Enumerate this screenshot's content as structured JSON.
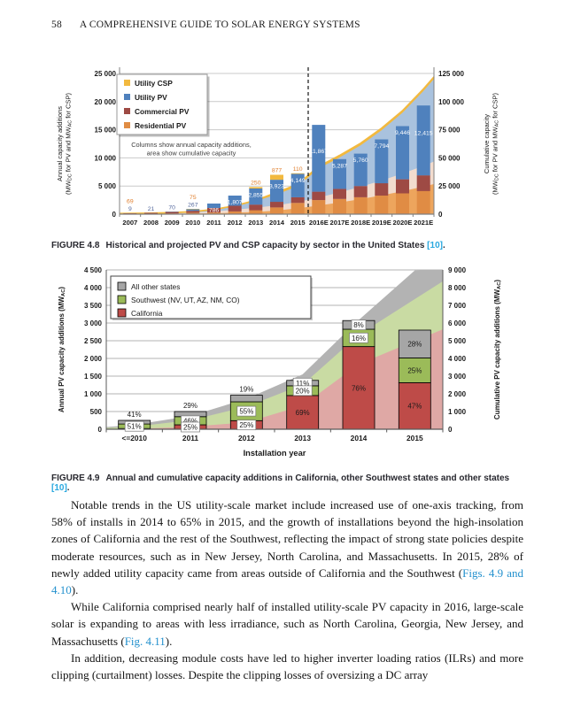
{
  "page": {
    "number": "58",
    "running_title": "A COMPREHENSIVE GUIDE TO SOLAR ENERGY SYSTEMS"
  },
  "figures": {
    "fig48_caption": {
      "label": "FIGURE 4.8",
      "text": "Historical and projected PV and CSP capacity by sector in the United States ",
      "ref": "[10]",
      "suffix": "."
    },
    "fig49_caption": {
      "label": "FIGURE 4.9",
      "text": "Annual and cumulative capacity additions in California, other Southwest states and other states ",
      "ref": "[10]",
      "suffix": "."
    }
  },
  "body": {
    "paragraphs": [
      {
        "segments": [
          {
            "t": "Notable trends in the US utility-scale market include increased use of one-axis tracking, from 58% of installs in 2014 to 65% in 2015, and the growth of installations beyond the high-insolation zones of California and the rest of the Southwest, reflecting the impact of strong state policies despite moderate resources, such as in New Jersey, North Carolina, and Massachusetts. In 2015, 28% of newly added utility capacity came from areas outside of California and the Southwest ("
          },
          {
            "t": "Figs. 4.9 and 4.10",
            "link": true
          },
          {
            "t": ")."
          }
        ]
      },
      {
        "segments": [
          {
            "t": "While California comprised nearly half of installed utility-scale PV capacity in 2016, large-scale solar is expanding to areas with less irradiance, such as North Carolina, Georgia, New Jersey, and Massachusetts ("
          },
          {
            "t": "Fig. 4.11",
            "link": true
          },
          {
            "t": ")."
          }
        ]
      },
      {
        "segments": [
          {
            "t": "In addition, decreasing module costs have led to higher inverter loading ratios (ILRs) and more clipping (curtailment) losses. Despite the clipping losses of oversizing a DC array"
          }
        ]
      }
    ]
  },
  "chart_data": [
    {
      "id": "fig48",
      "type": "bar",
      "description": "Stacked columns show annual capacity additions; stacked area shows cumulative capacity",
      "categories": [
        "2007",
        "2008",
        "2009",
        "2010",
        "2011",
        "2012",
        "2013",
        "2014",
        "2015",
        "2016E",
        "2017E",
        "2018E",
        "2019E",
        "2020E",
        "2021E"
      ],
      "legend": [
        {
          "label": "Utility CSP",
          "color": "#F2B93F"
        },
        {
          "label": "Utility PV",
          "color": "#4F81BD"
        },
        {
          "label": "Commercial PV",
          "color": "#9E4A44"
        },
        {
          "label": "Residential PV",
          "color": "#E08C44"
        }
      ],
      "note_lines": [
        "Columns show annual capacity additions,",
        "area show cumulative capacity"
      ],
      "left_axis": {
        "label_lines": [
          "Annual capacity additions",
          "(MW_{DC} for PV and MW_{AC} for CSP)"
        ],
        "ticks": [
          "0",
          "5 000",
          "10 000",
          "15 000",
          "20 000",
          "25 000"
        ],
        "max": 25000
      },
      "right_axis": {
        "label_lines": [
          "Cumulative capacity",
          "(MW_{DC} for PV and MW_{AC} for CSP)"
        ],
        "ticks": [
          "0",
          "25 000",
          "50 000",
          "75 000",
          "100 000",
          "125 000"
        ],
        "max": 125000
      },
      "annual_additions": {
        "residential_pv": [
          50,
          80,
          130,
          250,
          300,
          490,
          700,
          1200,
          2000,
          2500,
          2700,
          3000,
          3300,
          3700,
          4100
        ],
        "commercial_pv": [
          100,
          150,
          250,
          350,
          800,
          1000,
          1000,
          1000,
          1000,
          1500,
          1800,
          2000,
          2200,
          2500,
          2800
        ],
        "utility_pv": [
          9,
          21,
          70,
          267,
          786,
          1807,
          2855,
          3923,
          4149,
          11867,
          5287,
          5760,
          7794,
          9446,
          12415
        ],
        "utility_csp": [
          69,
          0,
          0,
          75,
          0,
          0,
          250,
          877,
          110,
          0,
          0,
          0,
          0,
          0,
          0
        ]
      },
      "cumulative_capacity": {
        "residential_pv": [
          50,
          130,
          260,
          510,
          810,
          1300,
          2000,
          3200,
          5200,
          7700,
          10400,
          13400,
          16700,
          20400,
          24500
        ],
        "commercial_pv": [
          100,
          250,
          500,
          850,
          1650,
          2650,
          3650,
          4650,
          5650,
          7150,
          8950,
          10950,
          13150,
          15650,
          18450
        ],
        "utility_pv": [
          9,
          30,
          100,
          367,
          1153,
          2960,
          5815,
          9738,
          13887,
          25754,
          31041,
          36801,
          44595,
          54041,
          66456
        ],
        "utility_csp": [
          489,
          489,
          489,
          564,
          564,
          564,
          814,
          1691,
          1801,
          1801,
          1801,
          1801,
          1801,
          1801,
          1801
        ]
      },
      "bar_labels": {
        "utility_csp": [
          "69",
          "",
          "",
          "75",
          "",
          "",
          "250",
          "877",
          "110",
          "",
          "",
          "",
          "",
          "",
          ""
        ],
        "utility_pv": [
          "9",
          "21",
          "70",
          "267",
          "786",
          "1,807",
          "2,855",
          "3,923",
          "4,149",
          "11,867",
          "5,287",
          "5,760",
          "7,794",
          "9,446",
          "12,415"
        ]
      },
      "projection_divider_after": "2015",
      "colors": {
        "bar_residential": "#E08C44",
        "bar_commercial": "#9E4A44",
        "bar_utility_pv": "#4F81BD",
        "bar_csp": "#F2B93F",
        "area_residential": "#EDA55D",
        "area_commercial": "#F2DCCE",
        "area_utility_pv": "#A9C2DE",
        "area_csp": "#F2B93F",
        "grid": "#C9C9C9",
        "axis": "#808080",
        "label_orange": "#E07F2E",
        "label_blue": "#55699E"
      }
    },
    {
      "id": "fig49",
      "type": "bar",
      "description": "Stacked columns (annual PV additions, % by region) with stacked area (cumulative PV additions)",
      "categories": [
        "<=2010",
        "2011",
        "2012",
        "2013",
        "2014",
        "2015"
      ],
      "xlabel": "Installation year",
      "legend": [
        {
          "label": "All other states",
          "color": "#A6A6A6"
        },
        {
          "label": "Southwest (NV, UT, AZ, NM, CO)",
          "color": "#9BBB59"
        },
        {
          "label": "California",
          "color": "#BE4B48"
        }
      ],
      "left_axis": {
        "label_lines": [
          "Annual PV capacity additions (MW_{AC})"
        ],
        "ticks": [
          "0",
          "500",
          "1 000",
          "1 500",
          "2 000",
          "2 500",
          "3 000",
          "3 500",
          "4 000",
          "4 500"
        ],
        "max": 4500
      },
      "right_axis": {
        "label_lines": [
          "Cumulative PV capacity additions (MW_{AC})"
        ],
        "ticks": [
          "0",
          "1 000",
          "2 000",
          "3 000",
          "4 000",
          "5 000",
          "6 000",
          "7 000",
          "8 000",
          "9 000"
        ],
        "max": 9000
      },
      "annual_totals_mw": [
        250,
        500,
        970,
        1380,
        3070,
        2800
      ],
      "share_pct": {
        "california": [
          8,
          25,
          25,
          69,
          76,
          47
        ],
        "southwest": [
          51,
          46,
          55,
          20,
          16,
          25
        ],
        "all_other": [
          41,
          29,
          19,
          11,
          8,
          28
        ]
      },
      "pct_labels": {
        "california": [
          "",
          "25%",
          "25%",
          "69%",
          "76%",
          "47%"
        ],
        "southwest": [
          "51%",
          "46%",
          "55%",
          "20%",
          "16%",
          "25%"
        ],
        "all_other": [
          "41%",
          "29%",
          "19%",
          "11%",
          "8%",
          "28%"
        ]
      },
      "cumulative_mw": {
        "california": [
          20,
          145,
          388,
          1340,
          3673,
          4989
        ],
        "california_plus_southwest": [
          148,
          503,
          1280,
          2508,
          5332,
          7348
        ],
        "total": [
          250,
          750,
          1720,
          3100,
          6170,
          8970
        ]
      },
      "colors": {
        "bar_other": "#A6A6A6",
        "bar_sw": "#9BBB59",
        "bar_ca": "#BE4B48",
        "area_other": "#B3B3B3",
        "area_sw": "#C9DBA3",
        "area_ca": "#DFA8A5",
        "grid": "#9A9A9A",
        "axis": "#595959"
      }
    }
  ]
}
